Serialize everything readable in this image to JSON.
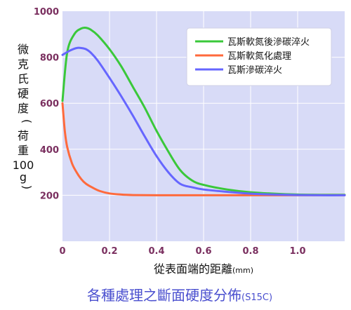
{
  "chart_data": {
    "type": "line",
    "caption": "各種處理之斷面硬度分佈",
    "caption_suffix": "(S15C)",
    "xlabel": "從表面端的距離",
    "xunit": "(mm)",
    "ylabel_chars": [
      "微",
      "克",
      "氏",
      "硬",
      "度",
      "(",
      "荷",
      "重",
      "100",
      "g",
      ")"
    ],
    "xlim": [
      0,
      1.2
    ],
    "ylim": [
      0,
      1000
    ],
    "x_ticks": [
      0,
      0.2,
      0.4,
      0.6,
      0.8,
      1.0
    ],
    "x_tick_labels": [
      "0",
      "0.2",
      "0.4",
      "0.6",
      "0.8",
      "1.0"
    ],
    "y_ticks": [
      200,
      400,
      600,
      800,
      1000
    ],
    "y_tick_labels": [
      "200",
      "400",
      "600",
      "800",
      "1000"
    ],
    "grid": true,
    "legend_position": "top-right",
    "series": [
      {
        "name": "瓦斯軟氮後滲碳淬火",
        "color": "#3ac83a",
        "x": [
          0,
          0.02,
          0.05,
          0.08,
          0.1,
          0.12,
          0.15,
          0.2,
          0.25,
          0.3,
          0.35,
          0.4,
          0.45,
          0.5,
          0.55,
          0.6,
          0.7,
          0.8,
          0.9,
          1.0,
          1.1,
          1.2
        ],
        "y": [
          610,
          820,
          900,
          925,
          928,
          920,
          895,
          835,
          760,
          670,
          580,
          480,
          390,
          310,
          265,
          245,
          225,
          213,
          207,
          203,
          202,
          202
        ]
      },
      {
        "name": "瓦斯軟氮化處理",
        "color": "#ff6a3c",
        "x": [
          0,
          0.01,
          0.02,
          0.04,
          0.06,
          0.08,
          0.1,
          0.13,
          0.16,
          0.2,
          0.25,
          0.3,
          0.4,
          0.6,
          0.8,
          1.0,
          1.2
        ],
        "y": [
          600,
          480,
          410,
          340,
          300,
          270,
          250,
          232,
          218,
          208,
          203,
          201,
          200,
          200,
          200,
          200,
          200
        ]
      },
      {
        "name": "瓦斯滲碳淬火",
        "color": "#6666ff",
        "x": [
          0,
          0.03,
          0.06,
          0.08,
          0.1,
          0.12,
          0.15,
          0.2,
          0.25,
          0.3,
          0.35,
          0.4,
          0.45,
          0.5,
          0.55,
          0.6,
          0.7,
          0.8,
          0.9,
          1.0,
          1.1,
          1.2
        ],
        "y": [
          810,
          828,
          840,
          840,
          835,
          820,
          785,
          710,
          630,
          545,
          455,
          370,
          300,
          250,
          235,
          225,
          215,
          207,
          203,
          201,
          200,
          200
        ]
      }
    ],
    "background_color": "#d8dbf7",
    "grid_color": "#ffffff",
    "axis_label_color": "#7a2f5f"
  }
}
